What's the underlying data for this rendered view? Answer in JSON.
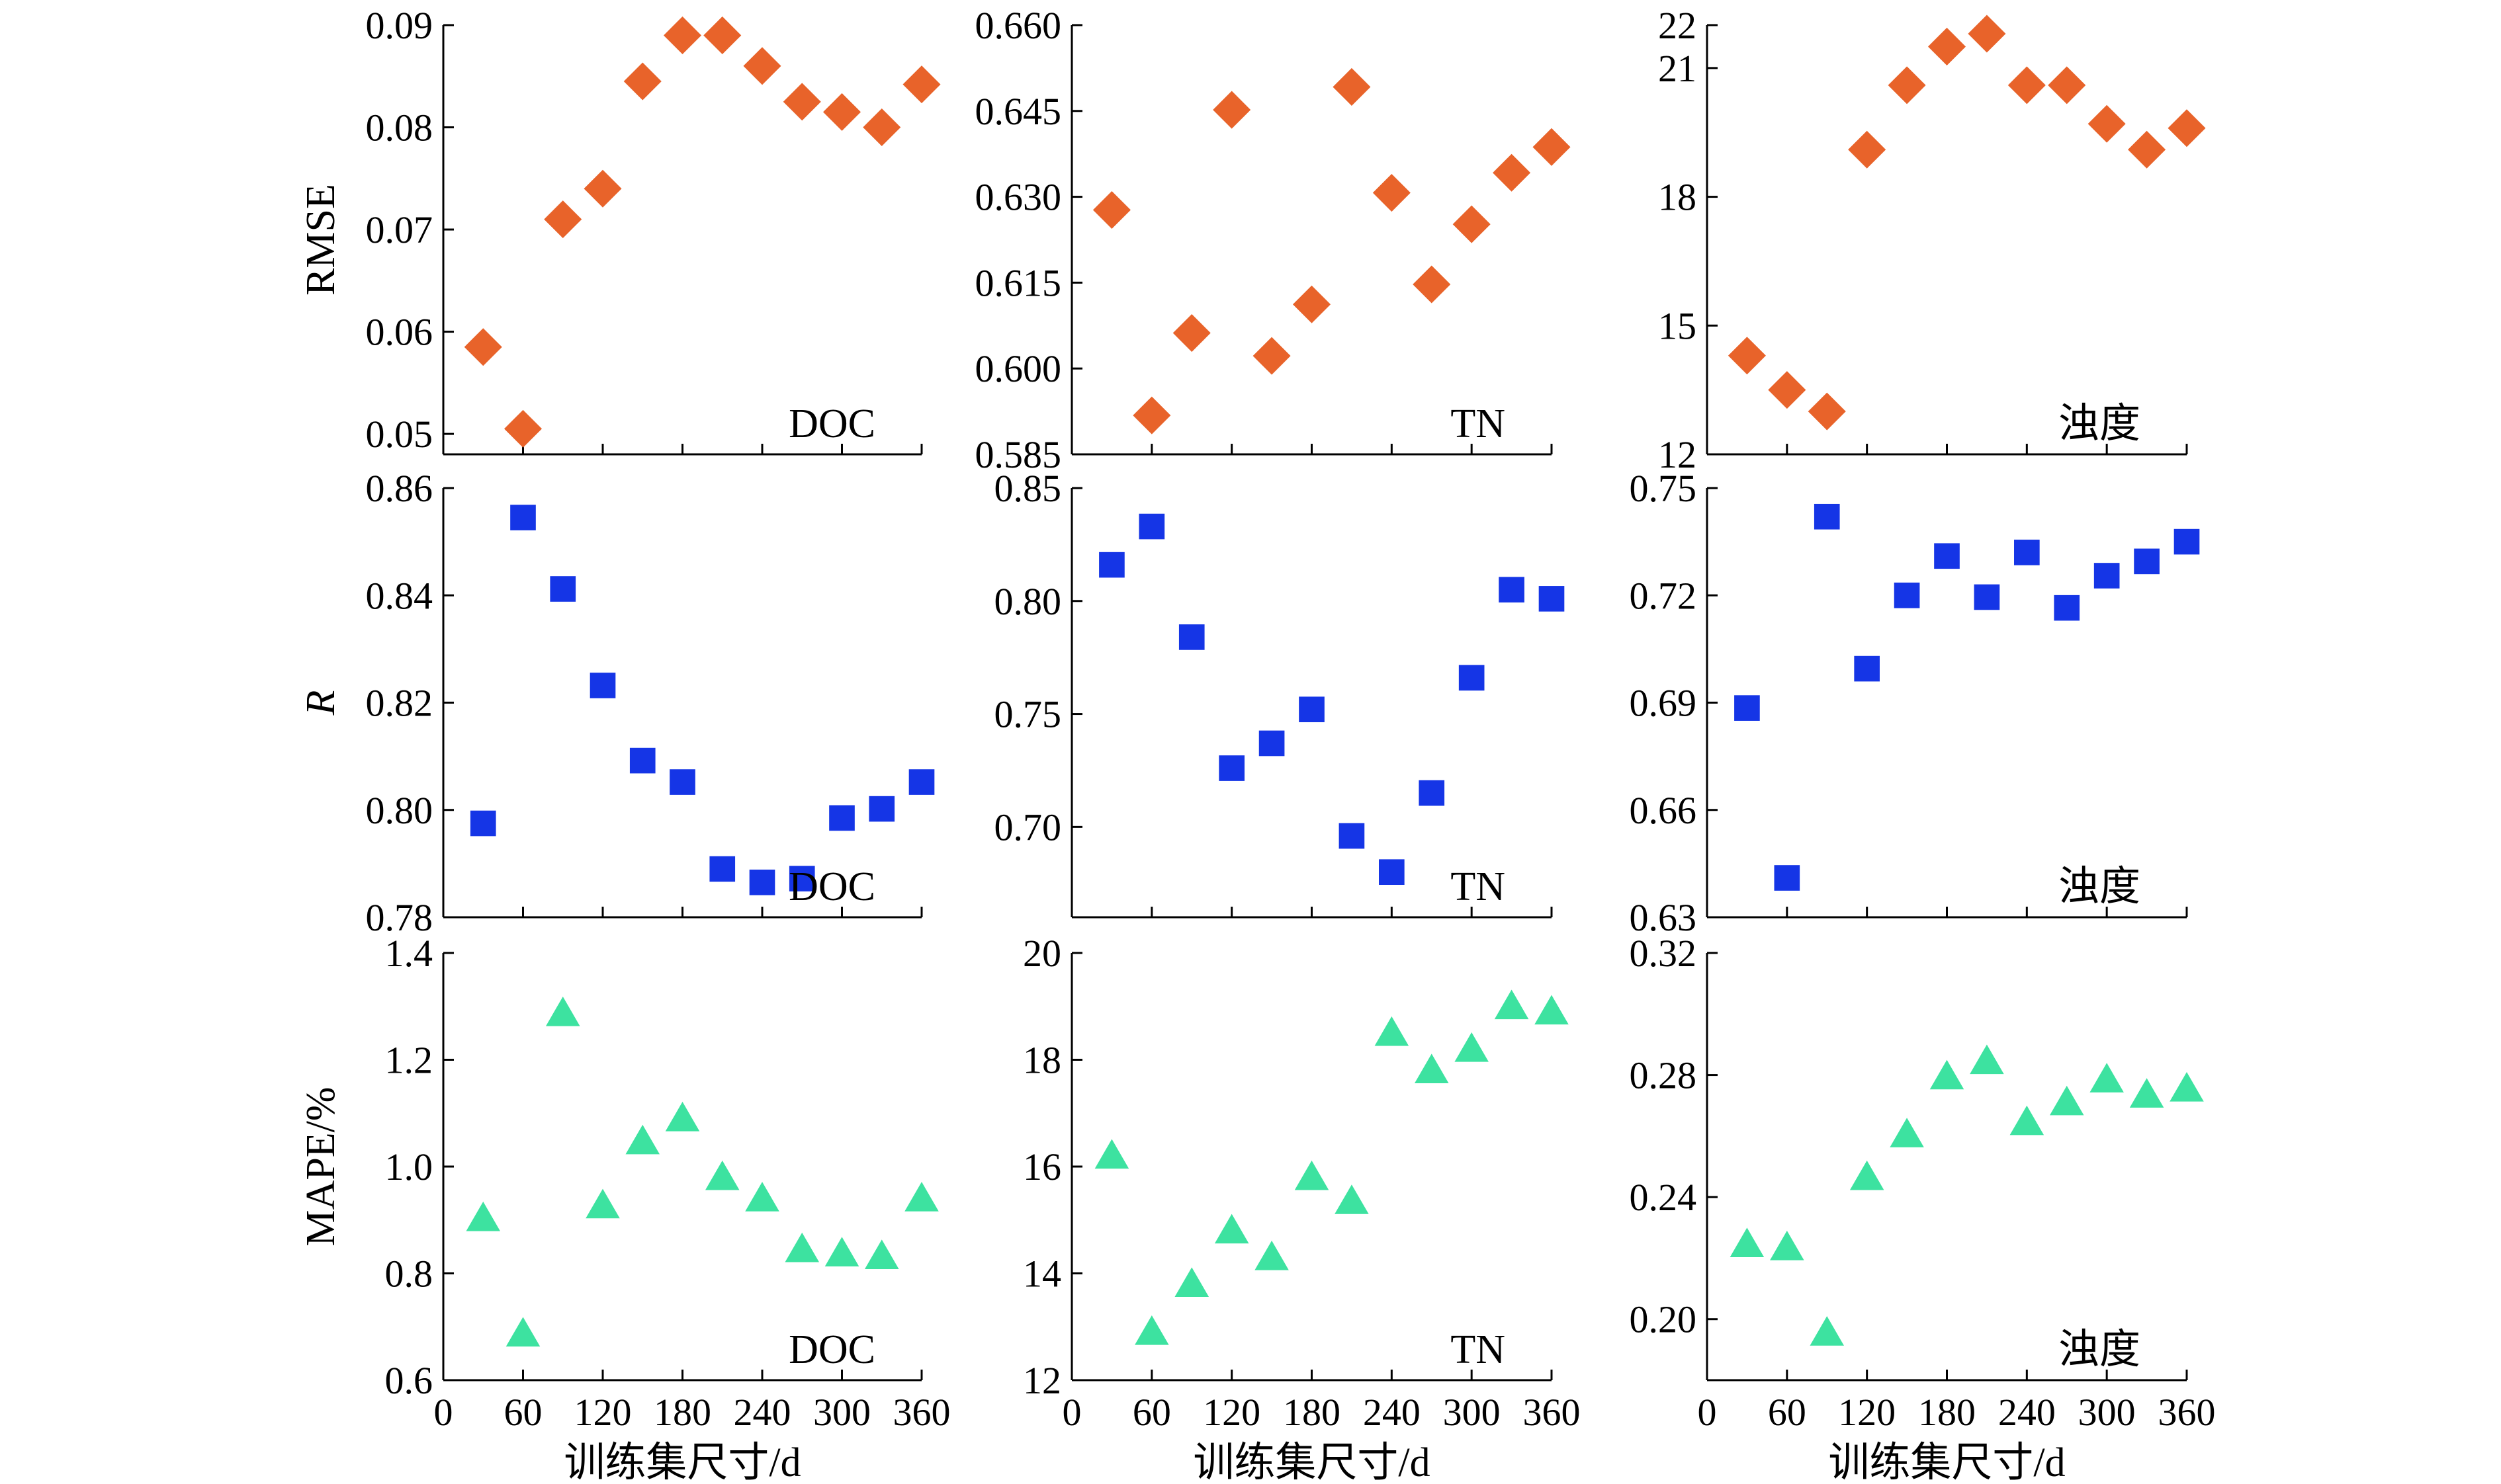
{
  "figure": {
    "x_label": "训练集尺寸/d",
    "x_ticks": [
      0,
      60,
      120,
      180,
      240,
      300,
      360
    ],
    "rows": [
      {
        "metric": "RMSE",
        "ylabel": "RMSE",
        "marker": "diamond",
        "color": "#e8632a"
      },
      {
        "metric": "R",
        "ylabel": "R",
        "marker": "square",
        "color": "#1535e6"
      },
      {
        "metric": "MAPE",
        "ylabel": "MAPE/%",
        "marker": "triangle",
        "color": "#3de2a0"
      }
    ]
  },
  "chart_data": [
    {
      "type": "scatter",
      "row": 0,
      "col": 0,
      "label": "DOC",
      "ylabel": "RMSE",
      "xlabel": "",
      "xlim": [
        0,
        360
      ],
      "ylim": [
        0.048,
        0.09
      ],
      "yticks": [
        0.05,
        0.06,
        0.07,
        0.08,
        0.09
      ],
      "ytick_labels": [
        "0.05",
        "0.06",
        "0.07",
        "0.08",
        "0.09"
      ],
      "x": [
        30,
        60,
        90,
        120,
        150,
        180,
        210,
        240,
        270,
        300,
        330,
        360
      ],
      "y": [
        0.0585,
        0.0505,
        0.071,
        0.074,
        0.0845,
        0.089,
        0.089,
        0.086,
        0.0825,
        0.0815,
        0.08,
        0.0842
      ]
    },
    {
      "type": "scatter",
      "row": 0,
      "col": 1,
      "label": "TN",
      "ylabel": "",
      "xlabel": "",
      "xlim": [
        0,
        360
      ],
      "ylim": [
        0.585,
        0.66
      ],
      "yticks": [
        0.585,
        0.6,
        0.615,
        0.63,
        0.645,
        0.66
      ],
      "ytick_labels": [
        "0.585",
        "0.600",
        "0.615",
        "0.630",
        "0.645",
        "0.660"
      ],
      "x": [
        30,
        60,
        90,
        120,
        150,
        180,
        210,
        240,
        270,
        300,
        330,
        360
      ],
      "y": [
        0.6277,
        0.5918,
        0.6062,
        0.6452,
        0.6022,
        0.6112,
        0.6492,
        0.6307,
        0.6147,
        0.6252,
        0.6342,
        0.6387
      ]
    },
    {
      "type": "scatter",
      "row": 0,
      "col": 2,
      "label": "浊度",
      "ylabel": "",
      "xlabel": "",
      "xlim": [
        0,
        360
      ],
      "ylim": [
        12,
        22
      ],
      "yticks": [
        12,
        15,
        18,
        21,
        22
      ],
      "ytick_labels": [
        "12",
        "15",
        "18",
        "21",
        "22"
      ],
      "x": [
        30,
        60,
        90,
        120,
        150,
        180,
        210,
        240,
        270,
        300,
        330,
        360
      ],
      "y": [
        14.3,
        13.5,
        13.0,
        19.1,
        20.6,
        21.5,
        21.8,
        20.6,
        20.6,
        19.7,
        19.1,
        19.6
      ]
    },
    {
      "type": "scatter",
      "row": 1,
      "col": 0,
      "label": "DOC",
      "ylabel": "R",
      "xlabel": "",
      "xlim": [
        0,
        360
      ],
      "ylim": [
        0.78,
        0.86
      ],
      "yticks": [
        0.78,
        0.8,
        0.82,
        0.84,
        0.86
      ],
      "ytick_labels": [
        "0.78",
        "0.80",
        "0.82",
        "0.84",
        "0.86"
      ],
      "x": [
        30,
        60,
        90,
        120,
        150,
        180,
        210,
        240,
        270,
        300,
        330,
        360
      ],
      "y": [
        0.7975,
        0.8545,
        0.8412,
        0.8232,
        0.8092,
        0.8052,
        0.789,
        0.7865,
        0.7872,
        0.7985,
        0.8002,
        0.8052
      ]
    },
    {
      "type": "scatter",
      "row": 1,
      "col": 1,
      "label": "TN",
      "ylabel": "",
      "xlabel": "",
      "xlim": [
        0,
        360
      ],
      "ylim": [
        0.66,
        0.85
      ],
      "yticks": [
        0.7,
        0.75,
        0.8,
        0.85
      ],
      "ytick_labels": [
        "0.70",
        "0.75",
        "0.80",
        "0.85"
      ],
      "x": [
        30,
        60,
        90,
        120,
        150,
        180,
        210,
        240,
        270,
        300,
        330,
        360
      ],
      "y": [
        0.816,
        0.833,
        0.784,
        0.726,
        0.737,
        0.752,
        0.696,
        0.68,
        0.715,
        0.766,
        0.805,
        0.801
      ]
    },
    {
      "type": "scatter",
      "row": 1,
      "col": 2,
      "label": "浊度",
      "ylabel": "",
      "xlabel": "",
      "xlim": [
        0,
        360
      ],
      "ylim": [
        0.63,
        0.75
      ],
      "yticks": [
        0.63,
        0.66,
        0.69,
        0.72,
        0.75
      ],
      "ytick_labels": [
        "0.63",
        "0.66",
        "0.69",
        "0.72",
        "0.75"
      ],
      "x": [
        30,
        60,
        90,
        120,
        150,
        180,
        210,
        240,
        270,
        300,
        330,
        360
      ],
      "y": [
        0.6885,
        0.641,
        0.742,
        0.6995,
        0.72,
        0.731,
        0.7195,
        0.732,
        0.7165,
        0.7255,
        0.7295,
        0.735
      ]
    },
    {
      "type": "scatter",
      "row": 2,
      "col": 0,
      "label": "DOC",
      "ylabel": "MAPE/%",
      "xlabel": "训练集尺寸/d",
      "xlim": [
        0,
        360
      ],
      "ylim": [
        0.6,
        1.4
      ],
      "yticks": [
        0.6,
        0.8,
        1.0,
        1.2,
        1.4
      ],
      "ytick_labels": [
        "0.6",
        "0.8",
        "1.0",
        "1.2",
        "1.4"
      ],
      "x": [
        30,
        60,
        90,
        120,
        150,
        180,
        210,
        240,
        270,
        300,
        330,
        360
      ],
      "y": [
        0.903,
        0.687,
        1.287,
        0.927,
        1.047,
        1.09,
        0.98,
        0.94,
        0.845,
        0.837,
        0.832,
        0.94
      ]
    },
    {
      "type": "scatter",
      "row": 2,
      "col": 1,
      "label": "TN",
      "ylabel": "",
      "xlabel": "训练集尺寸/d",
      "xlim": [
        0,
        360
      ],
      "ylim": [
        12,
        20
      ],
      "yticks": [
        12,
        14,
        16,
        18,
        20
      ],
      "ytick_labels": [
        "12",
        "14",
        "16",
        "18",
        "20"
      ],
      "x": [
        30,
        60,
        90,
        120,
        150,
        180,
        210,
        240,
        270,
        300,
        330,
        360
      ],
      "y": [
        16.2,
        12.9,
        13.8,
        14.8,
        14.3,
        15.8,
        15.35,
        18.5,
        17.8,
        18.2,
        19.0,
        18.9
      ]
    },
    {
      "type": "scatter",
      "row": 2,
      "col": 2,
      "label": "浊度",
      "ylabel": "",
      "xlabel": "训练集尺寸/d",
      "xlim": [
        0,
        360
      ],
      "ylim": [
        0.18,
        0.32
      ],
      "yticks": [
        0.2,
        0.24,
        0.28,
        0.32
      ],
      "ytick_labels": [
        "0.20",
        "0.24",
        "0.28",
        "0.32"
      ],
      "x": [
        30,
        60,
        90,
        120,
        150,
        180,
        210,
        240,
        270,
        300,
        330,
        360
      ],
      "y": [
        0.2245,
        0.2235,
        0.1955,
        0.2465,
        0.2605,
        0.2795,
        0.2845,
        0.2645,
        0.271,
        0.2785,
        0.2735,
        0.2755
      ]
    }
  ]
}
